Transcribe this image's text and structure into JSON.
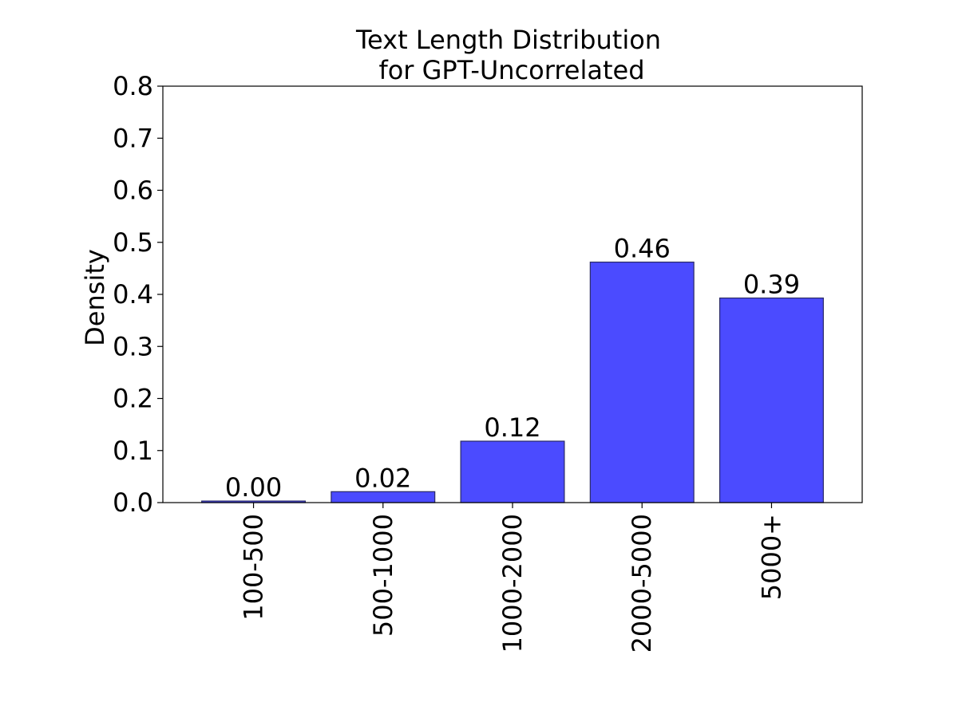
{
  "chart_data": {
    "type": "bar",
    "title_lines": [
      "Text Length Distribution",
      "for GPT-Uncorrelated"
    ],
    "xlabel": "",
    "ylabel": "Density",
    "categories": [
      "100-500",
      "500-1000",
      "1000-2000",
      "2000-5000",
      "5000+"
    ],
    "values": [
      0.003,
      0.021,
      0.118,
      0.462,
      0.393
    ],
    "data_labels": [
      "0.00",
      "0.02",
      "0.12",
      "0.46",
      "0.39"
    ],
    "ylim": [
      0,
      0.8
    ],
    "yticks": [
      0.0,
      0.1,
      0.2,
      0.3,
      0.4,
      0.5,
      0.6,
      0.7,
      0.8
    ],
    "ytick_labels": [
      "0.0",
      "0.1",
      "0.2",
      "0.3",
      "0.4",
      "0.5",
      "0.6",
      "0.7",
      "0.8"
    ],
    "bar_color": "#4b4bff",
    "bar_edge_color": "#2a2a66",
    "grid": false,
    "legend": "none",
    "xtick_rotation": "vertical"
  }
}
